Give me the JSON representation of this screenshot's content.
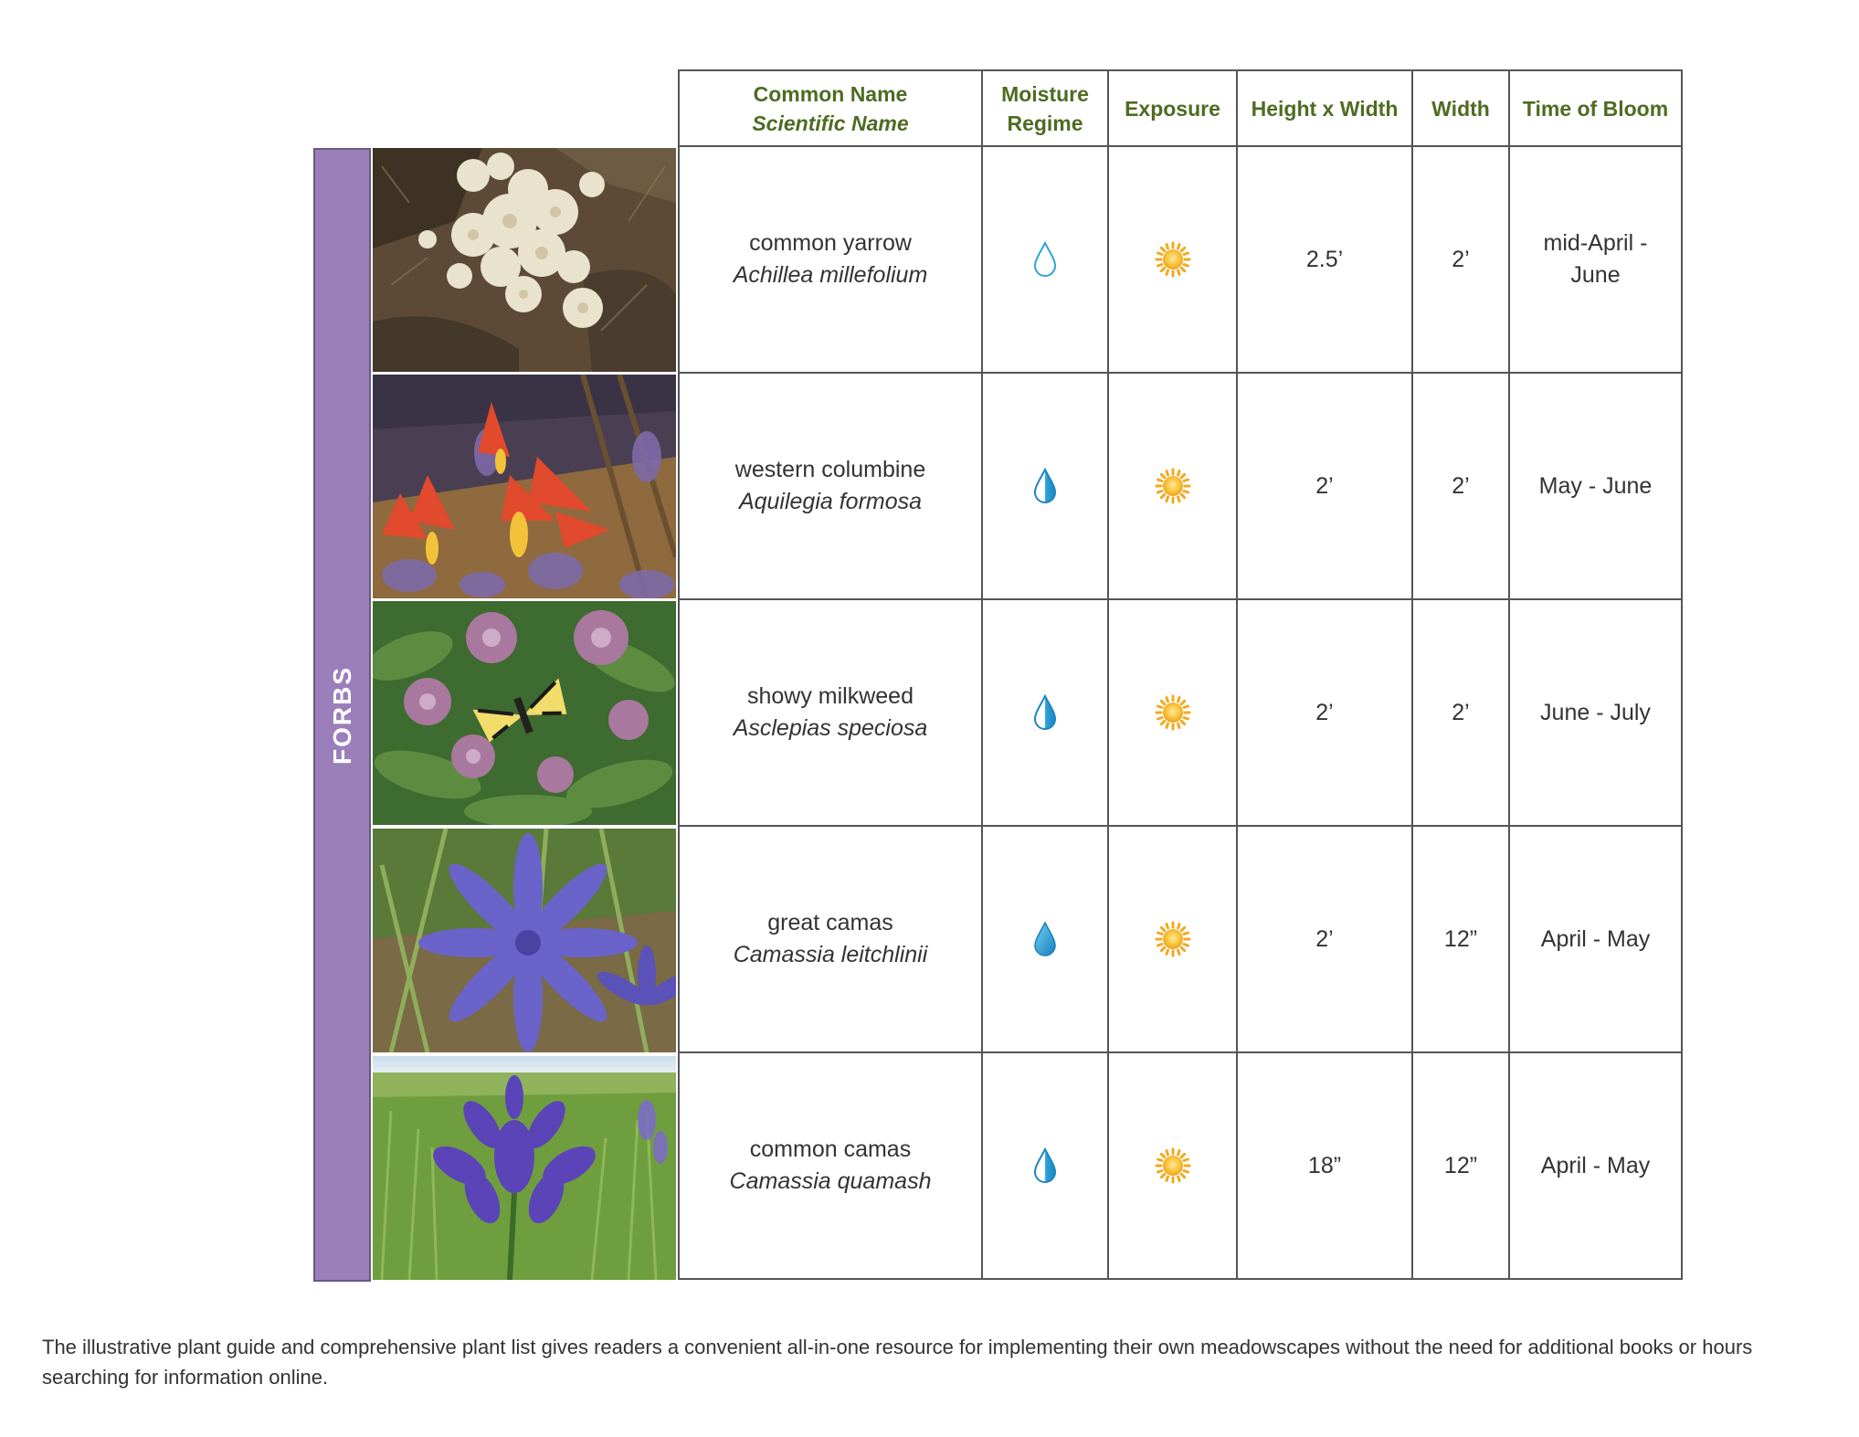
{
  "table": {
    "headers": {
      "name_common": "Common Name",
      "name_scientific": "Scientific Name",
      "moisture_line1": "Moisture",
      "moisture_line2": "Regime",
      "exposure": "Exposure",
      "height_width": "Height x Width",
      "width": "Width",
      "bloom": "Time of Bloom"
    },
    "category": "FORBS",
    "rows": [
      {
        "common": "common yarrow",
        "scientific": "Achillea millefolium",
        "moisture_icon": "water-drop-outline-icon",
        "exposure_icon": "sun-icon",
        "height": "2.5’",
        "width": "2’",
        "bloom": "mid-April - June",
        "photo": "white-yarrow-flowers"
      },
      {
        "common": "western columbine",
        "scientific": "Aquilegia formosa",
        "moisture_icon": "water-drop-half-icon",
        "exposure_icon": "sun-icon",
        "height": "2’",
        "width": "2’",
        "bloom": "May - June",
        "photo": "red-columbine-flowers"
      },
      {
        "common": "showy milkweed",
        "scientific": "Asclepias speciosa",
        "moisture_icon": "water-drop-half-icon",
        "exposure_icon": "sun-icon",
        "height": "2’",
        "width": "2’",
        "bloom": "June - July",
        "photo": "milkweed-with-swallowtail"
      },
      {
        "common": "great camas",
        "scientific": "Camassia leitchlinii",
        "moisture_icon": "water-drop-full-icon",
        "exposure_icon": "sun-icon",
        "height": "2’",
        "width": "12”",
        "bloom": "April - May",
        "photo": "blue-camas-flower"
      },
      {
        "common": "common camas",
        "scientific": "Camassia quamash",
        "moisture_icon": "water-drop-half-icon",
        "exposure_icon": "sun-icon",
        "height": "18”",
        "width": "12”",
        "bloom": "April - May",
        "photo": "camas-in-meadow"
      }
    ]
  },
  "colors": {
    "header_text": "#4f6b22",
    "category_bar": "#9b7fbb",
    "drop": "#33a6d6",
    "sun": "#f5b82e"
  },
  "caption": "The illustrative plant guide and comprehensive plant list gives readers a convenient all-in-one resource for implementing their own meadowscapes without the need for additional books or hours searching for information online."
}
